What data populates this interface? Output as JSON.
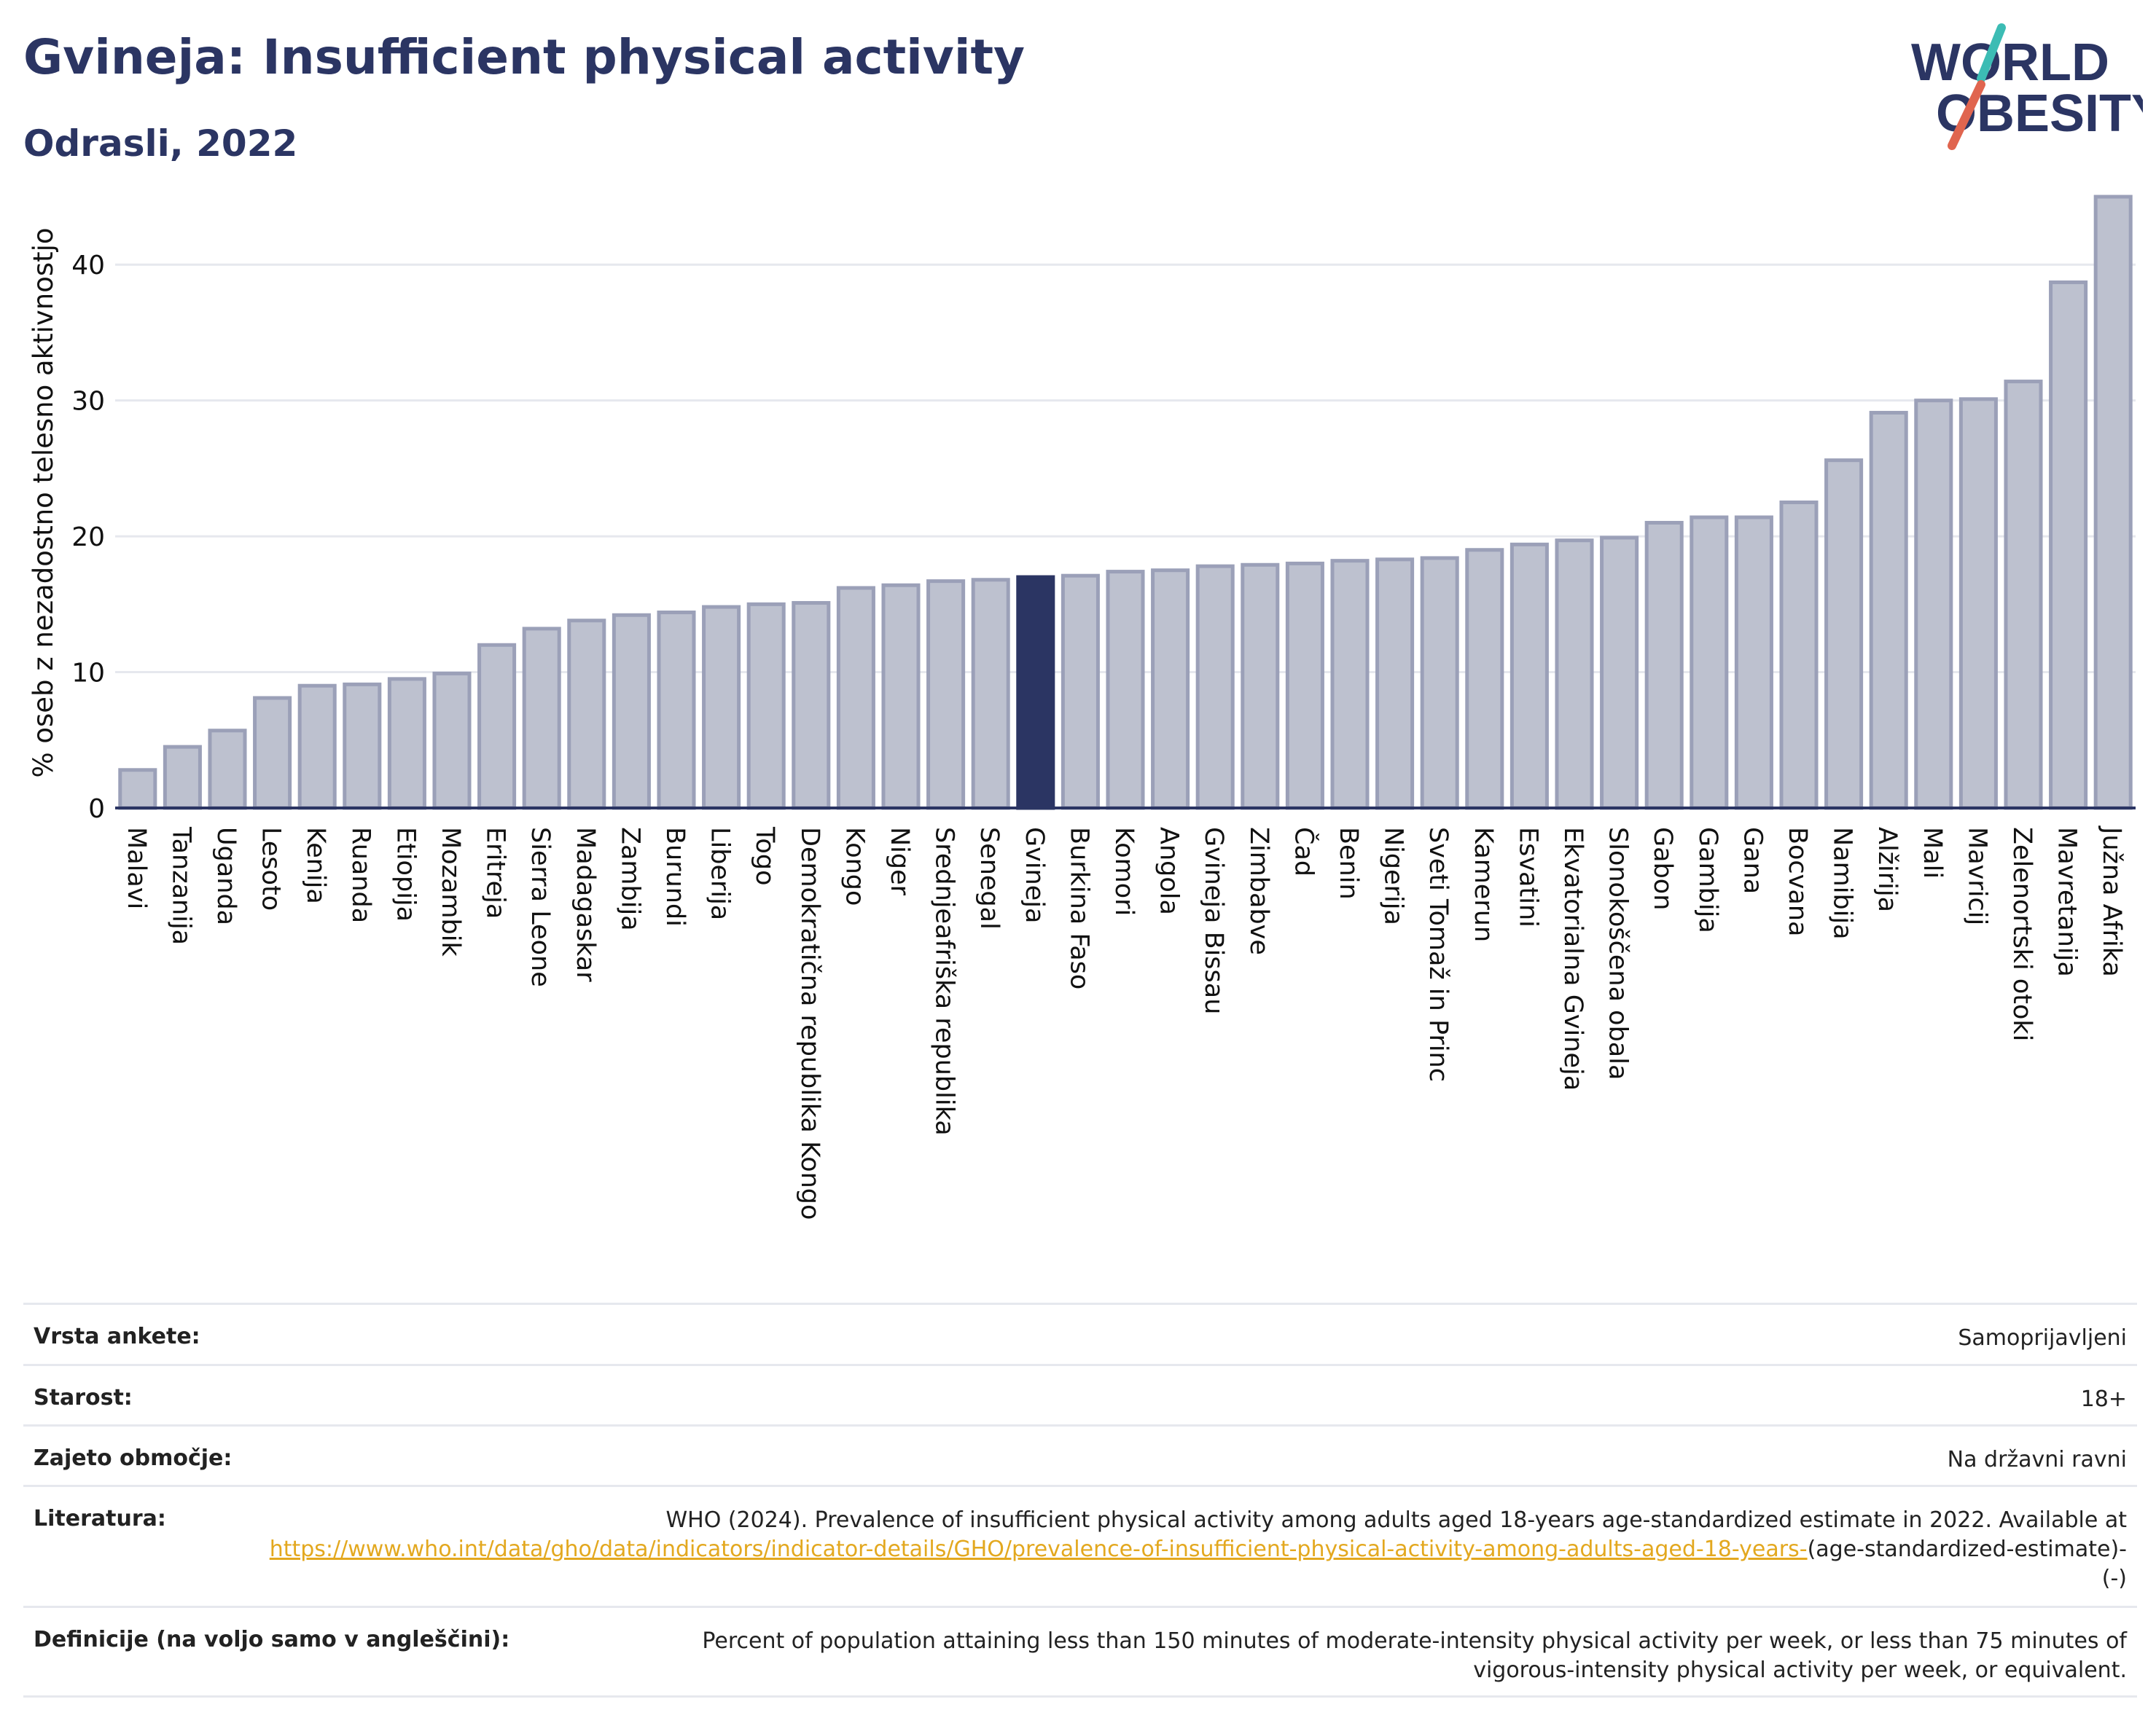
{
  "header": {
    "title": "Gvineja: Insufficient physical activity",
    "subtitle": "Odrasli, 2022"
  },
  "logo": {
    "line1": "WORLD",
    "line2": "OBESITY"
  },
  "colors": {
    "bar": "#bdc1cf",
    "bar_stroke": "#9ba0b8",
    "highlight": "#2b3563",
    "grid": "#e6e8ee",
    "axis": "#2b3563",
    "link": "#e3a81f"
  },
  "chart_data": {
    "type": "bar",
    "ylabel": "% oseb z nezadostno telesno aktivnostjo",
    "ylim": [
      0,
      45
    ],
    "yticks": [
      0,
      10,
      20,
      30,
      40
    ],
    "grid": true,
    "highlight": "Gvineja",
    "categories": [
      "Malavi",
      "Tanzanija",
      "Uganda",
      "Lesoto",
      "Kenija",
      "Ruanda",
      "Etiopija",
      "Mozambik",
      "Eritreja",
      "Sierra Leone",
      "Madagaskar",
      "Zambija",
      "Burundi",
      "Liberija",
      "Togo",
      "Demokratična republika Kongo",
      "Kongo",
      "Niger",
      "Srednjeafriška republika",
      "Senegal",
      "Gvineja",
      "Burkina Faso",
      "Komori",
      "Angola",
      "Gvineja Bissau",
      "Zimbabve",
      "Čad",
      "Benin",
      "Nigerija",
      "Sveti Tomaž in Princ",
      "Kamerun",
      "Esvatini",
      "Ekvatorialna Gvineja",
      "Slonokoščena obala",
      "Gabon",
      "Gambija",
      "Gana",
      "Bocvana",
      "Namibija",
      "Alžirija",
      "Mali",
      "Mavricij",
      "Zelenortski otoki",
      "Mavretanija",
      "Južna Afrika"
    ],
    "values": [
      2.8,
      4.5,
      5.7,
      8.1,
      9.0,
      9.1,
      9.5,
      9.9,
      12.0,
      13.2,
      13.8,
      14.2,
      14.4,
      14.8,
      15.0,
      15.1,
      16.2,
      16.4,
      16.7,
      16.8,
      17.0,
      17.1,
      17.4,
      17.5,
      17.8,
      17.9,
      18.0,
      18.2,
      18.3,
      18.4,
      19.0,
      19.4,
      19.7,
      19.9,
      21.0,
      21.4,
      21.4,
      22.5,
      25.6,
      29.1,
      30.0,
      30.1,
      31.4,
      38.7,
      45.0
    ]
  },
  "info": {
    "survey_label": "Vrsta ankete:",
    "survey_value": "Samoprijavljeni",
    "age_label": "Starost:",
    "age_value": "18+",
    "area_label": "Zajeto območje:",
    "area_value": "Na državni ravni",
    "ref_label": "Literatura:",
    "ref_text": "WHO (2024). Prevalence of insufficient physical activity among adults aged 18-years age-standardized estimate in 2022. Available at",
    "ref_link": "https://www.who.int/data/gho/data/indicators/indicator-details/GHO/prevalence-of-insufficient-physical-activity-among-adults-aged-18-years-",
    "ref_suffix": "(age-standardized-estimate)-(-)",
    "def_label": "Definicije (na voljo samo v angleščini):",
    "def_value": "Percent of population attaining less than 150 minutes of moderate-intensity physical activity per week, or less than 75 minutes of vigorous-intensity physical activity per week, or equivalent."
  }
}
